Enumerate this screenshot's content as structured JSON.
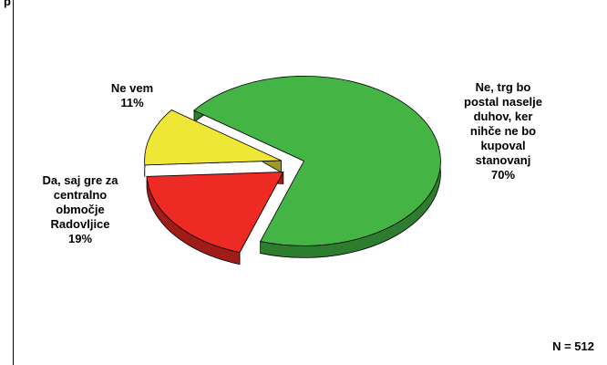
{
  "chart_data": {
    "type": "pie",
    "title": "p",
    "categories": [
      "Ne, trg bo postal naselje duhov, ker nihče ne bo kupoval stanovanj",
      "Da, saj gre za centralno območje Radovljice",
      "Ne vem"
    ],
    "values": [
      70,
      19,
      11
    ],
    "unit": "%",
    "labels": [
      {
        "text": "Ne, trg bo\npostal naselje\nduhov, ker\nnihče ne bo\nkupoval\nstanovanj\n70%"
      },
      {
        "text": "Da, saj gre za\ncentralno\nobmočje\nRadovljice\n19%"
      },
      {
        "text": "Ne vem\n11%"
      }
    ],
    "colors": [
      "#44b544",
      "#ee2a24",
      "#efe736"
    ],
    "side_colors": [
      "#2e7d2e",
      "#a01c18",
      "#a09a22"
    ],
    "legend": "none"
  },
  "footer": {
    "n_label": "N = 512"
  }
}
